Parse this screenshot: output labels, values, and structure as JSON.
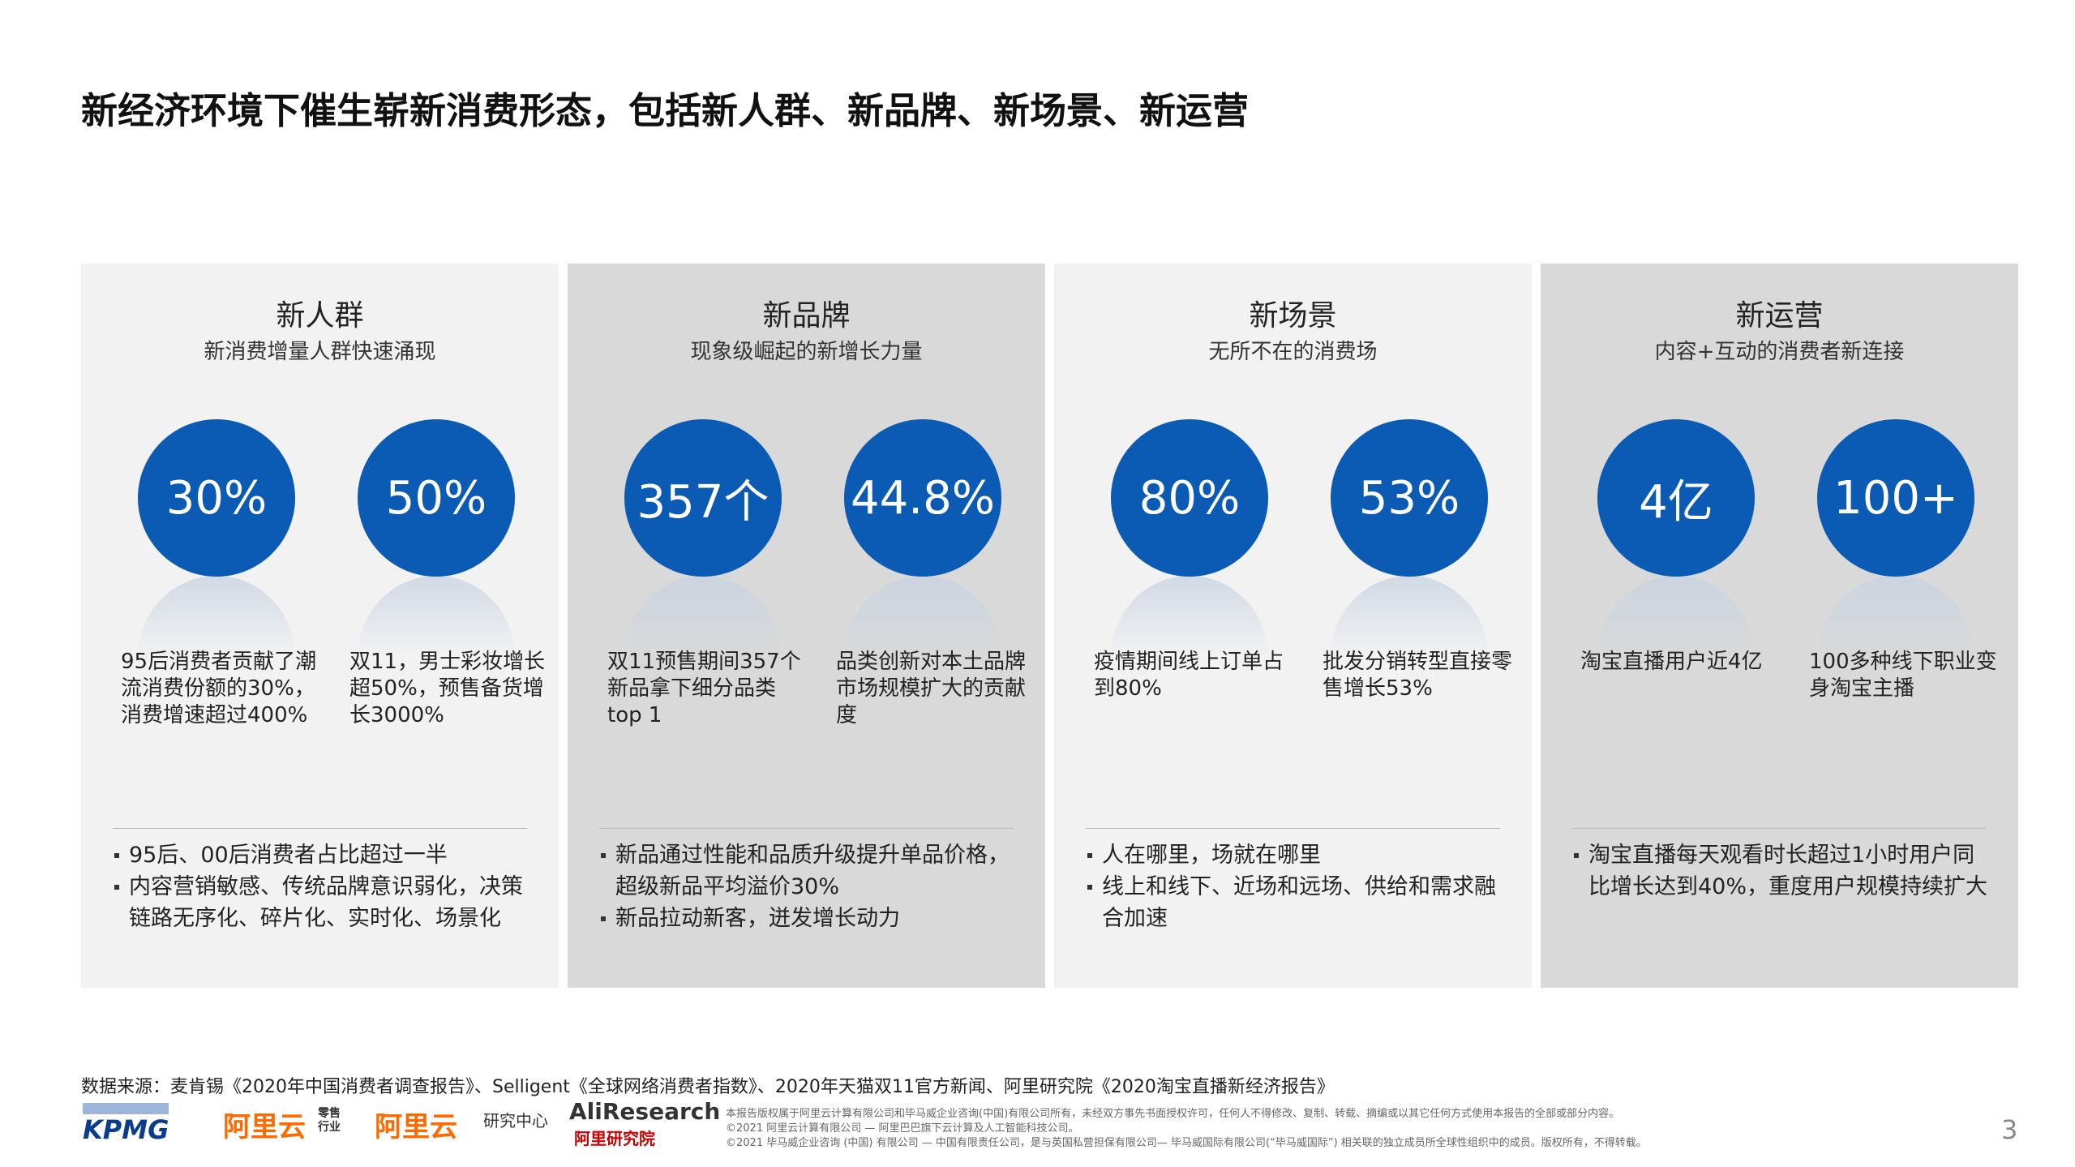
{
  "title": "新经济环境下催生崭新消费形态，包括新人群、新品牌、新场景、新运营",
  "panels": [
    {
      "title": "新人群",
      "subtitle": "新消费增量人群快速涌现",
      "stats": [
        {
          "value": "30%",
          "text": "95后消费者贡献了潮流消费份额的30%，消费增速超过400%"
        },
        {
          "value": "50%",
          "text": "双11，男士彩妆增长超50%，预售备货增长3000%"
        }
      ],
      "bullets": [
        "95后、00后消费者占比超过一半",
        "内容营销敏感、传统品牌意识弱化，决策链路无序化、碎片化、实时化、场景化"
      ]
    },
    {
      "title": "新品牌",
      "subtitle": "现象级崛起的新增长力量",
      "stats": [
        {
          "value": "357个",
          "text": "双11预售期间357个新品拿下细分品类top 1"
        },
        {
          "value": "44.8%",
          "text": "品类创新对本土品牌市场规模扩大的贡献度"
        }
      ],
      "bullets": [
        "新品通过性能和品质升级提升单品价格，超级新品平均溢价30%",
        "新品拉动新客，迸发增长动力"
      ]
    },
    {
      "title": "新场景",
      "subtitle": "无所不在的消费场",
      "stats": [
        {
          "value": "80%",
          "text": "疫情期间线上订单占到80%"
        },
        {
          "value": "53%",
          "text": "批发分销转型直接零售增长53%"
        }
      ],
      "bullets": [
        "人在哪里，场就在哪里",
        "线上和线下、近场和远场、供给和需求融合加速"
      ]
    },
    {
      "title": "新运营",
      "subtitle": "内容+互动的消费者新连接",
      "stats": [
        {
          "value": "4亿",
          "text": "淘宝直播用户近4亿"
        },
        {
          "value": "100+",
          "text": "100多种线下职业变身淘宝主播"
        }
      ],
      "bullets": [
        "淘宝直播每天观看时长超过1小时用户同比增长达到40%，重度用户规模持续扩大"
      ]
    }
  ],
  "source": "数据来源：麦肯锡《2020年中国消费者调查报告》、Selligent《全球网络消费者指数》、2020年天猫双11官方新闻、阿里研究院《2020淘宝直播新经济报告》",
  "logos": [
    "KPMG",
    "阿里云",
    "零售行业",
    "阿里云",
    "研究中心",
    "AliResearch",
    "阿里研究院"
  ],
  "copyright": [
    "本报告版权属于阿里云计算有限公司和毕马威企业咨询(中国)有限公司所有，未经双方事先书面授权许可，任何人不得修改、复制、转载、摘编或以其它任何方式使用本报告的全部或部分内容。",
    "©2021 阿里云计算有限公司 — 阿里巴巴旗下云计算及人工智能科技公司。",
    "©2021 毕马威企业咨询 (中国) 有限公司 — 中国有限责任公司，是与英国私营担保有限公司— 毕马威国际有限公司(“毕马威国际”) 相关联的独立成员所全球性组织中的成员。版权所有，不得转载。"
  ],
  "page": "3"
}
